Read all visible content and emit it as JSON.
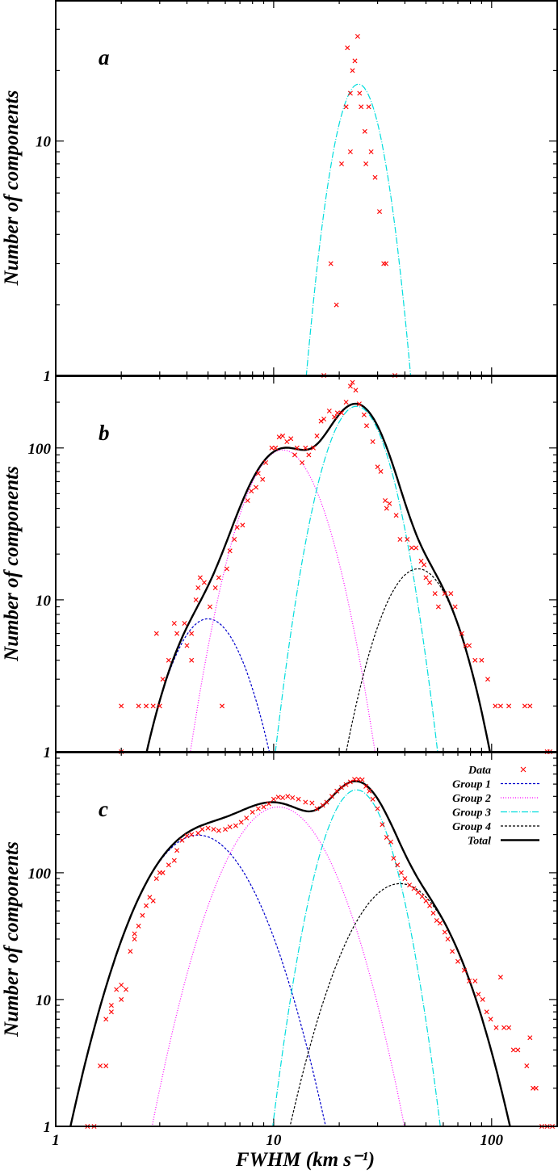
{
  "chart_data": {
    "type": "scatter",
    "x_label": "FWHM (km s⁻¹)",
    "y_label": "Number of components",
    "x_scale": "log",
    "y_scale": "log",
    "xlim": [
      1,
      200
    ],
    "x_ticks": [
      {
        "v": 1,
        "label": "1"
      },
      {
        "v": 10,
        "label": "10"
      },
      {
        "v": 100,
        "label": "100"
      }
    ],
    "y_ticks": [
      {
        "v": 1,
        "label": "1"
      },
      {
        "v": 10,
        "label": "10"
      },
      {
        "v": 100,
        "label": "100"
      }
    ],
    "legend": {
      "position": "top-right",
      "entries": [
        {
          "label": "Data",
          "key": "data"
        },
        {
          "label": "Group 1",
          "key": "g1"
        },
        {
          "label": "Group 2",
          "key": "g2"
        },
        {
          "label": "Group 3",
          "key": "g3"
        },
        {
          "label": "Group 4",
          "key": "g4"
        },
        {
          "label": "Total",
          "key": "total"
        }
      ]
    },
    "styles": {
      "data": {
        "color": "#ff0000"
      },
      "g1": {
        "color": "#0000cc",
        "dash": "3,2"
      },
      "g2": {
        "color": "#ff00ff",
        "dash": "1,2"
      },
      "g3": {
        "color": "#00dddd",
        "dash": "8,2,1,2"
      },
      "g4": {
        "color": "#000000",
        "dash": "3,2"
      },
      "total": {
        "color": "#000000",
        "dash": ""
      }
    },
    "panels": [
      {
        "label": "a",
        "ylim": [
          1,
          40
        ],
        "data": [
          [
            17.0,
            1
          ],
          [
            18.3,
            3
          ],
          [
            19.4,
            2
          ],
          [
            20.5,
            8
          ],
          [
            21.5,
            14
          ],
          [
            21.8,
            25
          ],
          [
            22.5,
            16
          ],
          [
            22.5,
            9
          ],
          [
            23.0,
            20
          ],
          [
            23.6,
            22
          ],
          [
            24.3,
            28
          ],
          [
            24.8,
            16
          ],
          [
            25.2,
            14
          ],
          [
            26.2,
            11
          ],
          [
            26.5,
            8
          ],
          [
            27.3,
            14
          ],
          [
            28.0,
            9
          ],
          [
            29.2,
            7
          ],
          [
            30.6,
            5
          ],
          [
            32.0,
            3
          ],
          [
            32.8,
            3
          ],
          [
            36.0,
            1
          ]
        ],
        "components": [
          {
            "key": "g3",
            "amp": 17.5,
            "mu": 24.5,
            "sigma": 0.1
          }
        ],
        "show_total": false
      },
      {
        "label": "b",
        "ylim": [
          1,
          300
        ],
        "data": [
          [
            2.0,
            2
          ],
          [
            2.0,
            1
          ],
          [
            2.4,
            2
          ],
          [
            2.6,
            2
          ],
          [
            2.8,
            2
          ],
          [
            3.0,
            2
          ],
          [
            2.9,
            6
          ],
          [
            3.1,
            3
          ],
          [
            3.3,
            4
          ],
          [
            3.5,
            7
          ],
          [
            3.6,
            6
          ],
          [
            3.9,
            7
          ],
          [
            4.0,
            5
          ],
          [
            4.2,
            4
          ],
          [
            4.2,
            6
          ],
          [
            4.5,
            12
          ],
          [
            4.6,
            14
          ],
          [
            4.4,
            10
          ],
          [
            4.8,
            13
          ],
          [
            5.1,
            9
          ],
          [
            5.4,
            12
          ],
          [
            5.6,
            14
          ],
          [
            5.8,
            2
          ],
          [
            6.1,
            16
          ],
          [
            6.3,
            21
          ],
          [
            6.6,
            25
          ],
          [
            6.8,
            30
          ],
          [
            7.2,
            31
          ],
          [
            7.6,
            45
          ],
          [
            7.9,
            52
          ],
          [
            8.3,
            55
          ],
          [
            8.5,
            68
          ],
          [
            8.9,
            62
          ],
          [
            9.2,
            80
          ],
          [
            9.8,
            100
          ],
          [
            10.2,
            100
          ],
          [
            10.6,
            118
          ],
          [
            11.0,
            120
          ],
          [
            11.5,
            110
          ],
          [
            12.0,
            115
          ],
          [
            12.5,
            90
          ],
          [
            12.8,
            100
          ],
          [
            13.5,
            80
          ],
          [
            14.0,
            100
          ],
          [
            14.5,
            90
          ],
          [
            15.2,
            100
          ],
          [
            15.8,
            120
          ],
          [
            16.5,
            150
          ],
          [
            17.0,
            155
          ],
          [
            18.0,
            175
          ],
          [
            19.0,
            160
          ],
          [
            19.6,
            170
          ],
          [
            20.5,
            170
          ],
          [
            21.5,
            200
          ],
          [
            22.5,
            255
          ],
          [
            23.0,
            270
          ],
          [
            23.8,
            240
          ],
          [
            24.7,
            195
          ],
          [
            26.0,
            165
          ],
          [
            26.7,
            140
          ],
          [
            28.5,
            110
          ],
          [
            30.0,
            75
          ],
          [
            31.0,
            70
          ],
          [
            32.5,
            45
          ],
          [
            33.0,
            40
          ],
          [
            34.0,
            43
          ],
          [
            36.5,
            36
          ],
          [
            38.0,
            25
          ],
          [
            41.0,
            25
          ],
          [
            43.0,
            22
          ],
          [
            45.0,
            22
          ],
          [
            47.5,
            18
          ],
          [
            49.0,
            17
          ],
          [
            50.0,
            14
          ],
          [
            52.0,
            13
          ],
          [
            55.0,
            11
          ],
          [
            57.0,
            9
          ],
          [
            61.0,
            11
          ],
          [
            65.0,
            11
          ],
          [
            68.0,
            9
          ],
          [
            73.0,
            6
          ],
          [
            76.0,
            5
          ],
          [
            79.0,
            5
          ],
          [
            84.0,
            4
          ],
          [
            90.0,
            4
          ],
          [
            96.0,
            3
          ],
          [
            104.0,
            2
          ],
          [
            110.0,
            2
          ],
          [
            120.0,
            2
          ],
          [
            142.0,
            2
          ],
          [
            150.0,
            2
          ],
          [
            180.0,
            1
          ],
          [
            185.0,
            1
          ]
        ],
        "components": [
          {
            "key": "g1",
            "amp": 7.5,
            "mu": 5.0,
            "sigma": 0.14
          },
          {
            "key": "g2",
            "amp": 97.0,
            "mu": 11.0,
            "sigma": 0.14
          },
          {
            "key": "g3",
            "amp": 188.0,
            "mu": 24.0,
            "sigma": 0.115
          },
          {
            "key": "g4",
            "amp": 16.0,
            "mu": 46.0,
            "sigma": 0.14
          }
        ],
        "show_total": true
      },
      {
        "label": "c",
        "ylim": [
          1,
          900
        ],
        "data": [
          [
            1.4,
            1
          ],
          [
            1.5,
            1
          ],
          [
            1.6,
            3
          ],
          [
            1.7,
            3
          ],
          [
            1.7,
            7
          ],
          [
            1.8,
            8
          ],
          [
            1.8,
            9
          ],
          [
            1.9,
            12
          ],
          [
            2.0,
            13
          ],
          [
            2.0,
            10
          ],
          [
            2.1,
            12
          ],
          [
            2.2,
            24
          ],
          [
            2.3,
            30
          ],
          [
            2.3,
            33
          ],
          [
            2.4,
            38
          ],
          [
            2.5,
            46
          ],
          [
            2.6,
            55
          ],
          [
            2.7,
            64
          ],
          [
            2.8,
            60
          ],
          [
            2.9,
            90
          ],
          [
            3.0,
            100
          ],
          [
            3.1,
            100
          ],
          [
            3.3,
            115
          ],
          [
            3.5,
            125
          ],
          [
            3.6,
            150
          ],
          [
            3.8,
            180
          ],
          [
            4.0,
            195
          ],
          [
            4.2,
            200
          ],
          [
            4.5,
            205
          ],
          [
            4.7,
            220
          ],
          [
            5.0,
            225
          ],
          [
            5.3,
            220
          ],
          [
            5.6,
            215
          ],
          [
            6.0,
            220
          ],
          [
            6.3,
            230
          ],
          [
            6.7,
            235
          ],
          [
            7.1,
            250
          ],
          [
            7.5,
            270
          ],
          [
            8.0,
            300
          ],
          [
            8.5,
            320
          ],
          [
            9.0,
            330
          ],
          [
            9.5,
            350
          ],
          [
            10.0,
            380
          ],
          [
            10.5,
            395
          ],
          [
            11.0,
            390
          ],
          [
            11.6,
            400
          ],
          [
            12.2,
            390
          ],
          [
            13.0,
            380
          ],
          [
            14.0,
            360
          ],
          [
            15.0,
            355
          ],
          [
            15.8,
            320
          ],
          [
            16.8,
            340
          ],
          [
            17.5,
            360
          ],
          [
            18.5,
            400
          ],
          [
            19.5,
            440
          ],
          [
            20.5,
            470
          ],
          [
            21.5,
            495
          ],
          [
            22.5,
            520
          ],
          [
            23.5,
            545
          ],
          [
            24.5,
            545
          ],
          [
            25.5,
            540
          ],
          [
            26.5,
            480
          ],
          [
            27.5,
            440
          ],
          [
            28.5,
            380
          ],
          [
            30.0,
            320
          ],
          [
            31.5,
            240
          ],
          [
            33.0,
            190
          ],
          [
            34.5,
            175
          ],
          [
            35.5,
            130
          ],
          [
            37.0,
            115
          ],
          [
            38.5,
            100
          ],
          [
            40.0,
            90
          ],
          [
            42.0,
            80
          ],
          [
            44.0,
            75
          ],
          [
            46.0,
            70
          ],
          [
            48.0,
            65
          ],
          [
            50.0,
            60
          ],
          [
            52.0,
            55
          ],
          [
            54.0,
            48
          ],
          [
            56.0,
            42
          ],
          [
            58.0,
            40
          ],
          [
            61.0,
            34
          ],
          [
            63.0,
            30
          ],
          [
            66.0,
            24
          ],
          [
            70.0,
            20
          ],
          [
            75.0,
            17
          ],
          [
            79.0,
            14
          ],
          [
            84.0,
            14
          ],
          [
            87.0,
            11
          ],
          [
            91.0,
            10
          ],
          [
            95.0,
            8
          ],
          [
            99.0,
            7
          ],
          [
            105.0,
            6
          ],
          [
            110.0,
            15
          ],
          [
            114.0,
            6
          ],
          [
            120.0,
            6
          ],
          [
            126.0,
            4
          ],
          [
            132.0,
            4
          ],
          [
            145.0,
            3
          ],
          [
            150.0,
            5
          ],
          [
            155.0,
            2
          ],
          [
            160.0,
            2
          ],
          [
            170.0,
            1
          ],
          [
            180.0,
            1
          ],
          [
            190.0,
            1
          ]
        ],
        "components": [
          {
            "key": "g1",
            "amp": 198.0,
            "mu": 4.5,
            "sigma": 0.18
          },
          {
            "key": "g2",
            "amp": 330.0,
            "mu": 10.5,
            "sigma": 0.17
          },
          {
            "key": "g3",
            "amp": 450.0,
            "mu": 24.0,
            "sigma": 0.11
          },
          {
            "key": "g4",
            "amp": 82.0,
            "mu": 38.0,
            "sigma": 0.17
          }
        ],
        "show_total": true
      }
    ]
  }
}
